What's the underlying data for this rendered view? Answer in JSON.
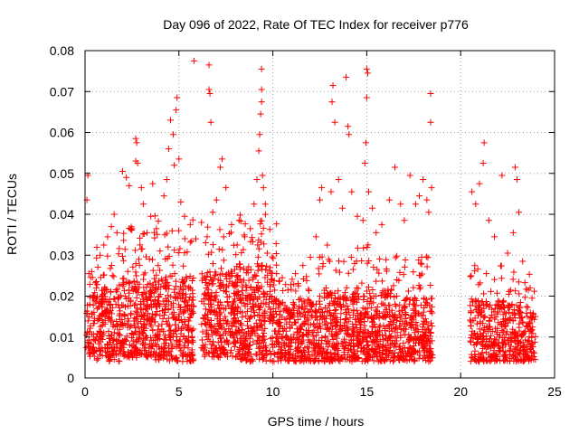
{
  "chart_data": {
    "type": "scatter",
    "title": "Day 096 of 2022, Rate Of TEC Index for receiver p776",
    "xlabel": "GPS time / hours",
    "ylabel": "ROTI / TECUs",
    "xlim": [
      0,
      25
    ],
    "ylim": [
      0,
      0.08
    ],
    "xticks": [
      0,
      5,
      10,
      15,
      20,
      25
    ],
    "yticks": [
      0,
      0.01,
      0.02,
      0.03,
      0.04,
      0.05,
      0.06,
      0.07,
      0.08
    ],
    "xtick_labels": [
      "0",
      "5",
      "10",
      "15",
      "20",
      "25"
    ],
    "ytick_labels": [
      "0",
      "0.01",
      "0.02",
      "0.03",
      "0.04",
      "0.05",
      "0.06",
      "0.07",
      "0.08"
    ],
    "grid": true,
    "marker": "+",
    "series": [
      {
        "color": "#ff0000",
        "points": [
          [
            0.1,
            0.0435
          ],
          [
            0.15,
            0.0495
          ],
          [
            0.2,
            0.0255
          ],
          [
            0.35,
            0.026
          ],
          [
            0.6,
            0.022
          ],
          [
            0.8,
            0.03
          ],
          [
            1.0,
            0.0325
          ],
          [
            1.2,
            0.0345
          ],
          [
            1.4,
            0.037
          ],
          [
            1.55,
            0.04
          ],
          [
            1.7,
            0.0355
          ],
          [
            2.0,
            0.0505
          ],
          [
            2.2,
            0.049
          ],
          [
            2.35,
            0.047
          ],
          [
            2.5,
            0.0365
          ],
          [
            2.7,
            0.0585
          ],
          [
            2.75,
            0.0575
          ],
          [
            2.7,
            0.053
          ],
          [
            2.8,
            0.0525
          ],
          [
            3.0,
            0.0465
          ],
          [
            3.1,
            0.0425
          ],
          [
            3.3,
            0.0355
          ],
          [
            3.5,
            0.0395
          ],
          [
            3.6,
            0.0475
          ],
          [
            3.8,
            0.0365
          ],
          [
            4.2,
            0.0445
          ],
          [
            4.35,
            0.0485
          ],
          [
            4.45,
            0.056
          ],
          [
            4.55,
            0.063
          ],
          [
            4.7,
            0.0595
          ],
          [
            4.75,
            0.052
          ],
          [
            4.85,
            0.0655
          ],
          [
            4.9,
            0.0685
          ],
          [
            5.0,
            0.0535
          ],
          [
            5.1,
            0.043
          ],
          [
            5.3,
            0.0395
          ],
          [
            5.6,
            0.0375
          ],
          [
            5.8,
            0.0775
          ],
          [
            5.9,
            0.034
          ],
          [
            6.2,
            0.038
          ],
          [
            6.5,
            0.0345
          ],
          [
            6.6,
            0.0705
          ],
          [
            6.65,
            0.0695
          ],
          [
            6.7,
            0.0625
          ],
          [
            6.8,
            0.0405
          ],
          [
            6.6,
            0.0765
          ],
          [
            7.0,
            0.0435
          ],
          [
            7.2,
            0.0515
          ],
          [
            7.3,
            0.0535
          ],
          [
            7.5,
            0.0465
          ],
          [
            7.8,
            0.0375
          ],
          [
            8.2,
            0.0385
          ],
          [
            8.5,
            0.0345
          ],
          [
            8.8,
            0.0365
          ],
          [
            9.0,
            0.0425
          ],
          [
            9.15,
            0.0485
          ],
          [
            9.25,
            0.0555
          ],
          [
            9.3,
            0.0595
          ],
          [
            9.35,
            0.0645
          ],
          [
            9.4,
            0.0675
          ],
          [
            9.4,
            0.0705
          ],
          [
            9.4,
            0.0755
          ],
          [
            9.45,
            0.0495
          ],
          [
            9.5,
            0.0465
          ],
          [
            9.6,
            0.0425
          ],
          [
            9.7,
            0.0305
          ],
          [
            10.2,
            0.0255
          ],
          [
            10.5,
            0.0245
          ],
          [
            10.8,
            0.0215
          ],
          [
            11.2,
            0.0255
          ],
          [
            11.6,
            0.0275
          ],
          [
            12.0,
            0.0295
          ],
          [
            12.3,
            0.0345
          ],
          [
            12.5,
            0.0435
          ],
          [
            12.6,
            0.0465
          ],
          [
            12.9,
            0.0325
          ],
          [
            13.1,
            0.0455
          ],
          [
            13.15,
            0.0675
          ],
          [
            13.2,
            0.0715
          ],
          [
            13.3,
            0.0625
          ],
          [
            13.5,
            0.0485
          ],
          [
            13.7,
            0.0415
          ],
          [
            13.9,
            0.0735
          ],
          [
            14.0,
            0.0615
          ],
          [
            14.05,
            0.0595
          ],
          [
            14.2,
            0.0455
          ],
          [
            14.5,
            0.0395
          ],
          [
            14.8,
            0.0385
          ],
          [
            14.9,
            0.0525
          ],
          [
            14.95,
            0.0575
          ],
          [
            15.0,
            0.0685
          ],
          [
            15.05,
            0.0745
          ],
          [
            15.0,
            0.0755
          ],
          [
            15.1,
            0.0455
          ],
          [
            15.3,
            0.0415
          ],
          [
            15.5,
            0.0355
          ],
          [
            15.8,
            0.0375
          ],
          [
            16.2,
            0.0435
          ],
          [
            16.5,
            0.0515
          ],
          [
            16.8,
            0.0425
          ],
          [
            17.0,
            0.0385
          ],
          [
            17.3,
            0.0495
          ],
          [
            17.6,
            0.0425
          ],
          [
            17.8,
            0.0445
          ],
          [
            18.0,
            0.0485
          ],
          [
            18.2,
            0.0435
          ],
          [
            18.3,
            0.0405
          ],
          [
            18.4,
            0.0695
          ],
          [
            18.4,
            0.0625
          ],
          [
            18.45,
            0.0465
          ],
          [
            20.6,
            0.0455
          ],
          [
            20.8,
            0.0425
          ],
          [
            21.0,
            0.0475
          ],
          [
            21.2,
            0.0525
          ],
          [
            21.25,
            0.0575
          ],
          [
            21.5,
            0.0385
          ],
          [
            21.8,
            0.0345
          ],
          [
            22.2,
            0.0495
          ],
          [
            22.5,
            0.0305
          ],
          [
            22.8,
            0.0355
          ],
          [
            22.9,
            0.0515
          ],
          [
            23.0,
            0.0485
          ],
          [
            23.1,
            0.0405
          ],
          [
            23.3,
            0.0285
          ],
          [
            23.6,
            0.0215
          ],
          [
            23.8,
            0.0195
          ]
        ],
        "dense_segments": [
          {
            "x_range": [
              0.05,
              0.6
            ],
            "y_range": [
              0.005,
              0.02
            ],
            "outer_y": 0.026,
            "count": 60
          },
          {
            "x_range": [
              0.6,
              2.0
            ],
            "y_range": [
              0.004,
              0.022
            ],
            "outer_y": 0.032,
            "count": 210
          },
          {
            "x_range": [
              2.0,
              3.7
            ],
            "y_range": [
              0.005,
              0.025
            ],
            "outer_y": 0.038,
            "count": 270
          },
          {
            "x_range": [
              3.7,
              5.8
            ],
            "y_range": [
              0.004,
              0.025
            ],
            "outer_y": 0.04,
            "count": 330
          },
          {
            "x_range": [
              6.2,
              8.2
            ],
            "y_range": [
              0.005,
              0.026
            ],
            "outer_y": 0.037,
            "count": 320
          },
          {
            "x_range": [
              8.2,
              10.2
            ],
            "y_range": [
              0.004,
              0.028
            ],
            "outer_y": 0.04,
            "count": 330
          },
          {
            "x_range": [
              10.2,
              12.4
            ],
            "y_range": [
              0.004,
              0.019
            ],
            "outer_y": 0.025,
            "count": 300
          },
          {
            "x_range": [
              12.4,
              14.4
            ],
            "y_range": [
              0.004,
              0.021
            ],
            "outer_y": 0.03,
            "count": 300
          },
          {
            "x_range": [
              14.4,
              16.4
            ],
            "y_range": [
              0.004,
              0.022
            ],
            "outer_y": 0.033,
            "count": 300
          },
          {
            "x_range": [
              16.4,
              18.5
            ],
            "y_range": [
              0.004,
              0.02
            ],
            "outer_y": 0.03,
            "count": 300
          },
          {
            "x_range": [
              20.5,
              22.3
            ],
            "y_range": [
              0.004,
              0.019
            ],
            "outer_y": 0.028,
            "count": 240
          },
          {
            "x_range": [
              22.3,
              24.0
            ],
            "y_range": [
              0.004,
              0.018
            ],
            "outer_y": 0.026,
            "count": 220
          }
        ]
      }
    ]
  }
}
